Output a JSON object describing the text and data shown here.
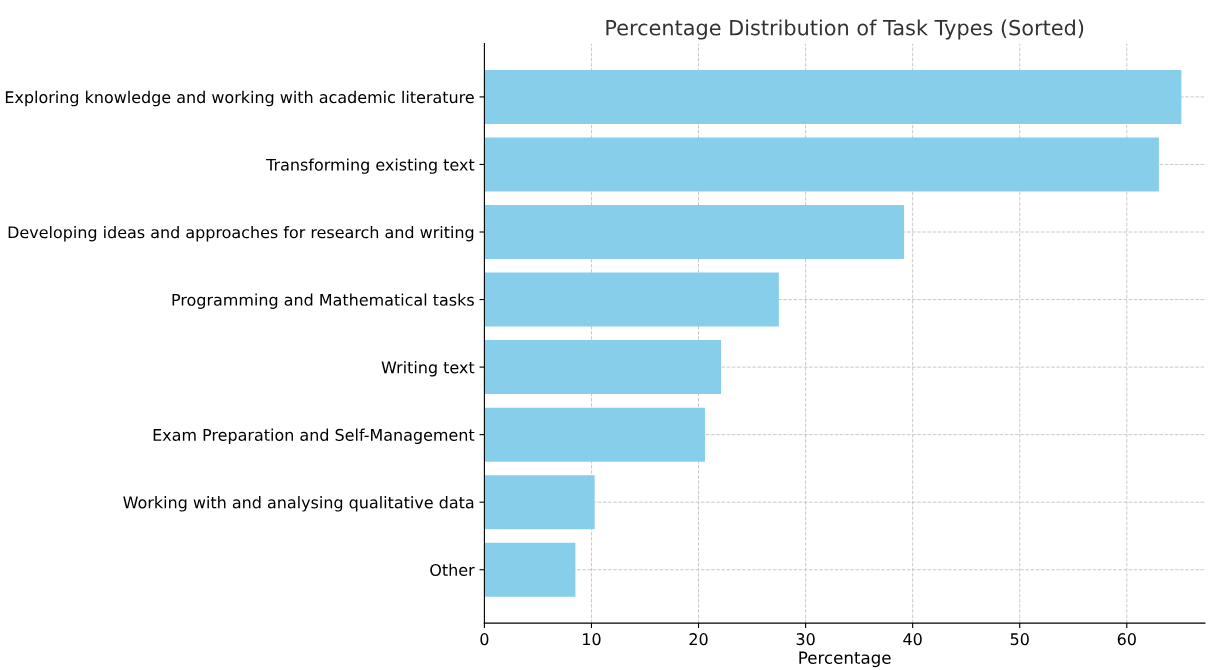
{
  "chart_data": {
    "type": "bar",
    "orientation": "horizontal",
    "title": "Percentage Distribution of Task Types (Sorted)",
    "xlabel": "Percentage",
    "categories": [
      "Exploring knowledge and working with academic literature",
      "Transforming existing text",
      "Developing ideas and approaches for research and writing",
      "Programming and Mathematical tasks",
      "Writing text",
      "Exam Preparation and Self-Management",
      "Working with and analysing qualitative data",
      "Other"
    ],
    "values": [
      65.1,
      63.0,
      39.2,
      27.5,
      22.1,
      20.6,
      10.3,
      8.5
    ],
    "color": "#87ceeb",
    "xlim": [
      0,
      67.3
    ],
    "xticks": [
      0,
      10,
      20,
      30,
      40,
      50,
      60
    ],
    "grid": true,
    "line_style": "dashed"
  }
}
